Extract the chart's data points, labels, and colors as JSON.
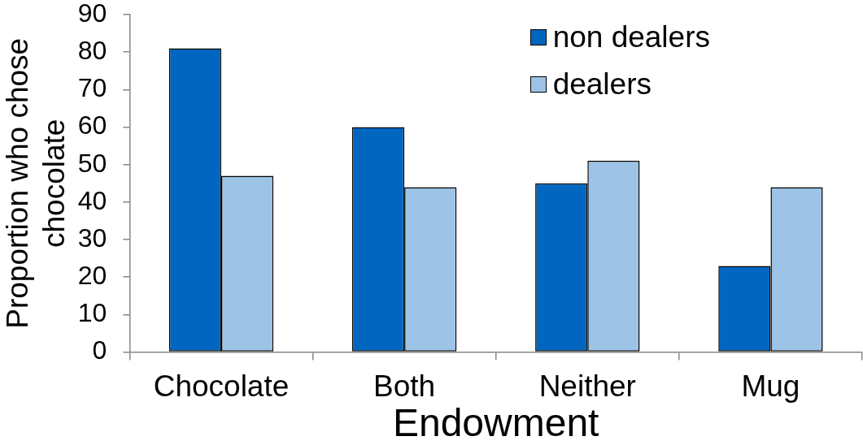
{
  "chart_data": {
    "type": "bar",
    "xlabel": "Endowment",
    "ylabel": "Proportion who chose chocolate",
    "categories": [
      "Chocolate",
      "Both",
      "Neither",
      "Mug"
    ],
    "series": [
      {
        "name": "non dealers",
        "color": "#0066bf",
        "values": [
          81,
          60,
          45,
          23
        ]
      },
      {
        "name": "dealers",
        "color": "#9dc3e6",
        "values": [
          47,
          44,
          51,
          44
        ]
      }
    ],
    "ylim": [
      0,
      90
    ],
    "yticks": [
      0,
      10,
      20,
      30,
      40,
      50,
      60,
      70,
      80,
      90
    ],
    "legend": "top right"
  }
}
